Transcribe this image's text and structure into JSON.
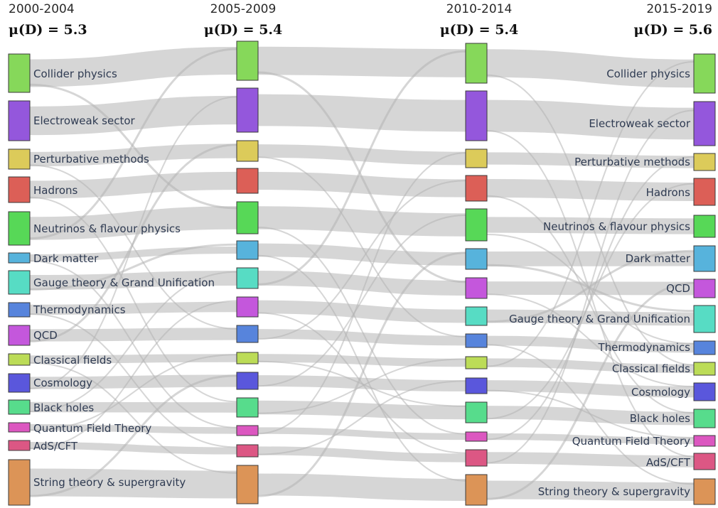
{
  "columns": [
    {
      "period": "2000-2004",
      "metric": "μ(D) = 5.3",
      "mu_value": 5.3
    },
    {
      "period": "2005-2009",
      "metric": "μ(D) = 5.4",
      "mu_value": 5.4
    },
    {
      "period": "2010-2014",
      "metric": "μ(D) = 5.4",
      "mu_value": 5.4
    },
    {
      "period": "2015-2019",
      "metric": "μ(D) = 5.6",
      "mu_value": 5.6
    }
  ],
  "nodes": [
    [
      {
        "label": "Collider physics",
        "color": "#86d85a"
      },
      {
        "label": "Electroweak sector",
        "color": "#9457dc"
      },
      {
        "label": "Perturbative methods",
        "color": "#dccb5a"
      },
      {
        "label": "Hadrons",
        "color": "#dc5f57"
      },
      {
        "label": "Neutrinos & flavour physics",
        "color": "#57d857"
      },
      {
        "label": "Dark matter",
        "color": "#57b3dc"
      },
      {
        "label": "Gauge theory & Grand Unification",
        "color": "#57dcc4"
      },
      {
        "label": "Thermodynamics",
        "color": "#5784dc"
      },
      {
        "label": "QCD",
        "color": "#c457dc"
      },
      {
        "label": "Classical fields",
        "color": "#bcdc57"
      },
      {
        "label": "Cosmology",
        "color": "#5a57dc"
      },
      {
        "label": "Black holes",
        "color": "#57dc8c"
      },
      {
        "label": "Quantum Field Theory",
        "color": "#dc57c0"
      },
      {
        "label": "AdS/CFT",
        "color": "#dc5784"
      },
      {
        "label": "String theory & supergravity",
        "color": "#dc9457"
      }
    ],
    [
      {
        "label": "",
        "color": "#86d85a"
      },
      {
        "label": "",
        "color": "#9457dc"
      },
      {
        "label": "",
        "color": "#dccb5a"
      },
      {
        "label": "",
        "color": "#dc5f57"
      },
      {
        "label": "",
        "color": "#57d857"
      },
      {
        "label": "",
        "color": "#57b3dc"
      },
      {
        "label": "",
        "color": "#57dcc4"
      },
      {
        "label": "",
        "color": "#c457dc"
      },
      {
        "label": "",
        "color": "#5784dc"
      },
      {
        "label": "",
        "color": "#bcdc57"
      },
      {
        "label": "",
        "color": "#5a57dc"
      },
      {
        "label": "",
        "color": "#57dc8c"
      },
      {
        "label": "",
        "color": "#dc57c0"
      },
      {
        "label": "",
        "color": "#dc5784"
      },
      {
        "label": "",
        "color": "#dc9457"
      }
    ],
    [
      {
        "label": "",
        "color": "#86d85a"
      },
      {
        "label": "",
        "color": "#9457dc"
      },
      {
        "label": "",
        "color": "#dccb5a"
      },
      {
        "label": "",
        "color": "#dc5f57"
      },
      {
        "label": "",
        "color": "#57d857"
      },
      {
        "label": "",
        "color": "#57b3dc"
      },
      {
        "label": "",
        "color": "#c457dc"
      },
      {
        "label": "",
        "color": "#57dcc4"
      },
      {
        "label": "",
        "color": "#5784dc"
      },
      {
        "label": "",
        "color": "#bcdc57"
      },
      {
        "label": "",
        "color": "#5a57dc"
      },
      {
        "label": "",
        "color": "#57dc8c"
      },
      {
        "label": "",
        "color": "#dc57c0"
      },
      {
        "label": "",
        "color": "#dc5784"
      },
      {
        "label": "",
        "color": "#dc9457"
      }
    ],
    [
      {
        "label": "Collider physics",
        "color": "#86d85a"
      },
      {
        "label": "Electroweak sector",
        "color": "#9457dc"
      },
      {
        "label": "Perturbative methods",
        "color": "#dccb5a"
      },
      {
        "label": "Hadrons",
        "color": "#dc5f57"
      },
      {
        "label": "Neutrinos & flavour physics",
        "color": "#57d857"
      },
      {
        "label": "Dark matter",
        "color": "#57b3dc"
      },
      {
        "label": "QCD",
        "color": "#c457dc"
      },
      {
        "label": "Gauge theory & Grand Unification",
        "color": "#57dcc4"
      },
      {
        "label": "Thermodynamics",
        "color": "#5784dc"
      },
      {
        "label": "Classical fields",
        "color": "#bcdc57"
      },
      {
        "label": "Cosmology",
        "color": "#5a57dc"
      },
      {
        "label": "Black holes",
        "color": "#57dc8c"
      },
      {
        "label": "Quantum Field Theory",
        "color": "#dc57c0"
      },
      {
        "label": "AdS/CFT",
        "color": "#dc5784"
      },
      {
        "label": "String theory & supergravity",
        "color": "#dc9457"
      }
    ]
  ]
}
